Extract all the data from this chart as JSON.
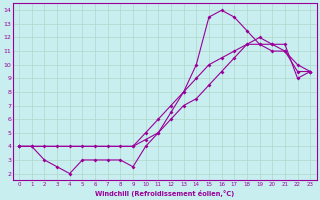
{
  "background_color": "#c8eef0",
  "grid_color": "#b0d8c8",
  "line_color": "#990099",
  "xlabel": "Windchill (Refroidissement éolien,°C)",
  "xlim": [
    -0.5,
    23.5
  ],
  "ylim": [
    1.5,
    14.5
  ],
  "xtick_vals": [
    0,
    1,
    2,
    3,
    4,
    5,
    6,
    7,
    8,
    9,
    10,
    11,
    12,
    13,
    14,
    15,
    16,
    17,
    18,
    19,
    20,
    21,
    22,
    23
  ],
  "ytick_vals": [
    2,
    3,
    4,
    5,
    6,
    7,
    8,
    9,
    10,
    11,
    12,
    13,
    14
  ],
  "line1_x": [
    0,
    1,
    2,
    3,
    4,
    5,
    6,
    7,
    8,
    9,
    10,
    11,
    12,
    13,
    14,
    15,
    16,
    17,
    18,
    19,
    20,
    21,
    22,
    23
  ],
  "line1_y": [
    4.0,
    4.0,
    3.0,
    2.5,
    2.0,
    3.0,
    3.0,
    3.0,
    3.0,
    2.5,
    4.0,
    5.0,
    6.5,
    8.0,
    10.0,
    13.5,
    14.0,
    13.5,
    12.5,
    11.5,
    11.0,
    11.0,
    9.5,
    9.5
  ],
  "line2_x": [
    0,
    1,
    2,
    3,
    4,
    5,
    6,
    7,
    8,
    9,
    10,
    11,
    12,
    13,
    14,
    15,
    16,
    17,
    18,
    19,
    20,
    21,
    22,
    23
  ],
  "line2_y": [
    4.0,
    4.0,
    4.0,
    4.0,
    4.0,
    4.0,
    4.0,
    4.0,
    4.0,
    4.0,
    5.0,
    6.0,
    7.0,
    8.0,
    9.0,
    10.0,
    10.5,
    11.0,
    11.5,
    11.5,
    11.5,
    11.0,
    10.0,
    9.5
  ],
  "line3_x": [
    0,
    9,
    10,
    11,
    12,
    13,
    14,
    15,
    16,
    17,
    18,
    19,
    20,
    21,
    22,
    23
  ],
  "line3_y": [
    4.0,
    4.0,
    4.5,
    5.0,
    6.0,
    7.0,
    7.5,
    8.5,
    9.5,
    10.5,
    11.5,
    12.0,
    11.5,
    11.5,
    9.0,
    9.5
  ]
}
